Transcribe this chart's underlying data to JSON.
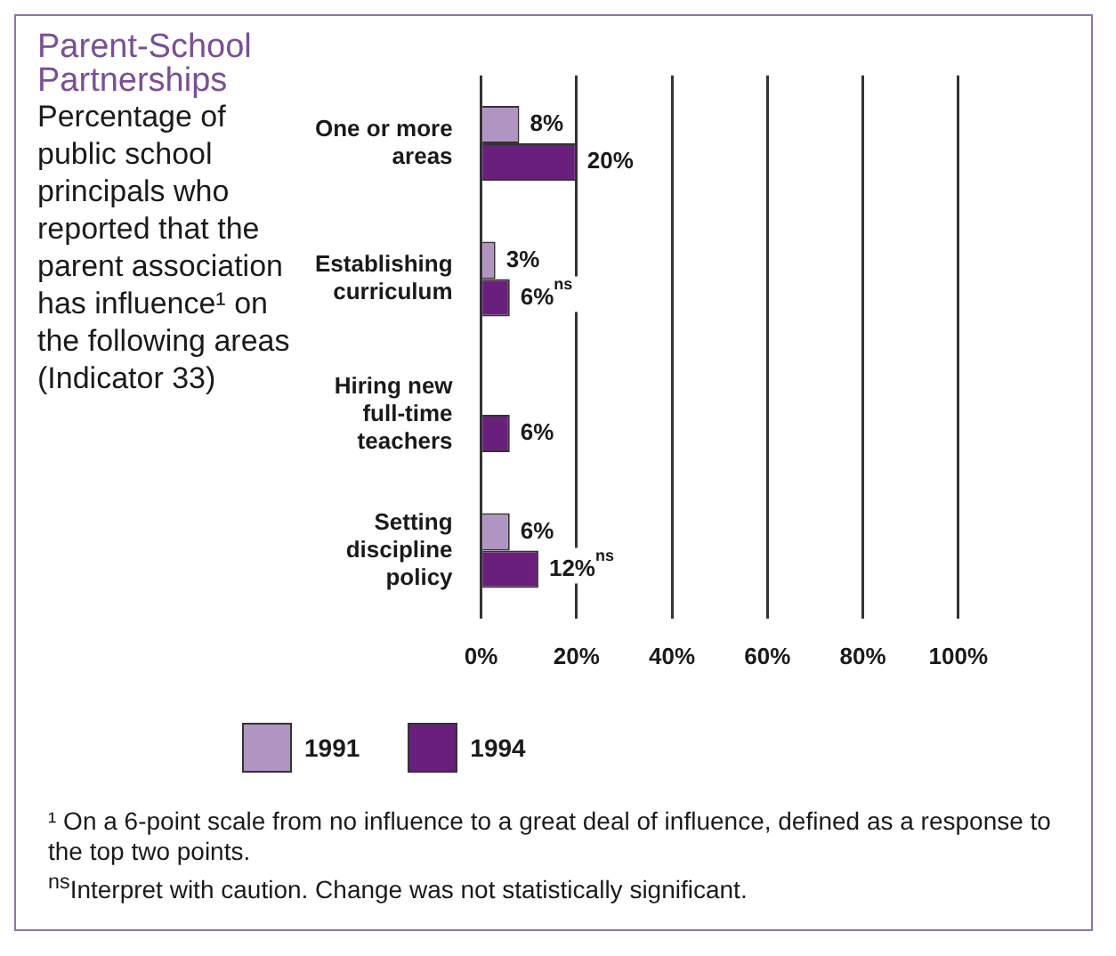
{
  "chart_data": {
    "type": "bar",
    "orientation": "horizontal",
    "title": "Parent-School Partnerships",
    "subtitle": "Percentage of public school principals who reported that the parent association has influence¹ on the following areas (Indicator 33)",
    "categories": [
      "One or more areas",
      "Establishing curriculum",
      "Hiring new full-time teachers",
      "Setting discipline policy"
    ],
    "series": [
      {
        "name": "1991",
        "color": "#b094c2",
        "values": [
          8,
          3,
          null,
          6
        ],
        "value_labels": [
          "8%",
          "3%",
          null,
          "6%"
        ]
      },
      {
        "name": "1994",
        "color": "#6a1f7c",
        "values": [
          20,
          6,
          6,
          12
        ],
        "value_labels": [
          "20%",
          "6%$^{ns}$",
          "6%",
          "12%$^{ns}$"
        ]
      }
    ],
    "xlim": [
      0,
      100
    ],
    "xticks": [
      {
        "value": 0,
        "label": "0%"
      },
      {
        "value": 20,
        "label": "20%"
      },
      {
        "value": 40,
        "label": "40%"
      },
      {
        "value": 60,
        "label": "60%"
      },
      {
        "value": 80,
        "label": "80%"
      },
      {
        "value": 100,
        "label": "100%"
      }
    ],
    "grid": "x",
    "legend": "bottom left",
    "annotations": [
      "¹ On a 6-point scale from no influence to a great deal of influence, defined as a response to the top two points.",
      "$^{ns}$Interpret with caution.  Change was not statistically significant."
    ]
  }
}
